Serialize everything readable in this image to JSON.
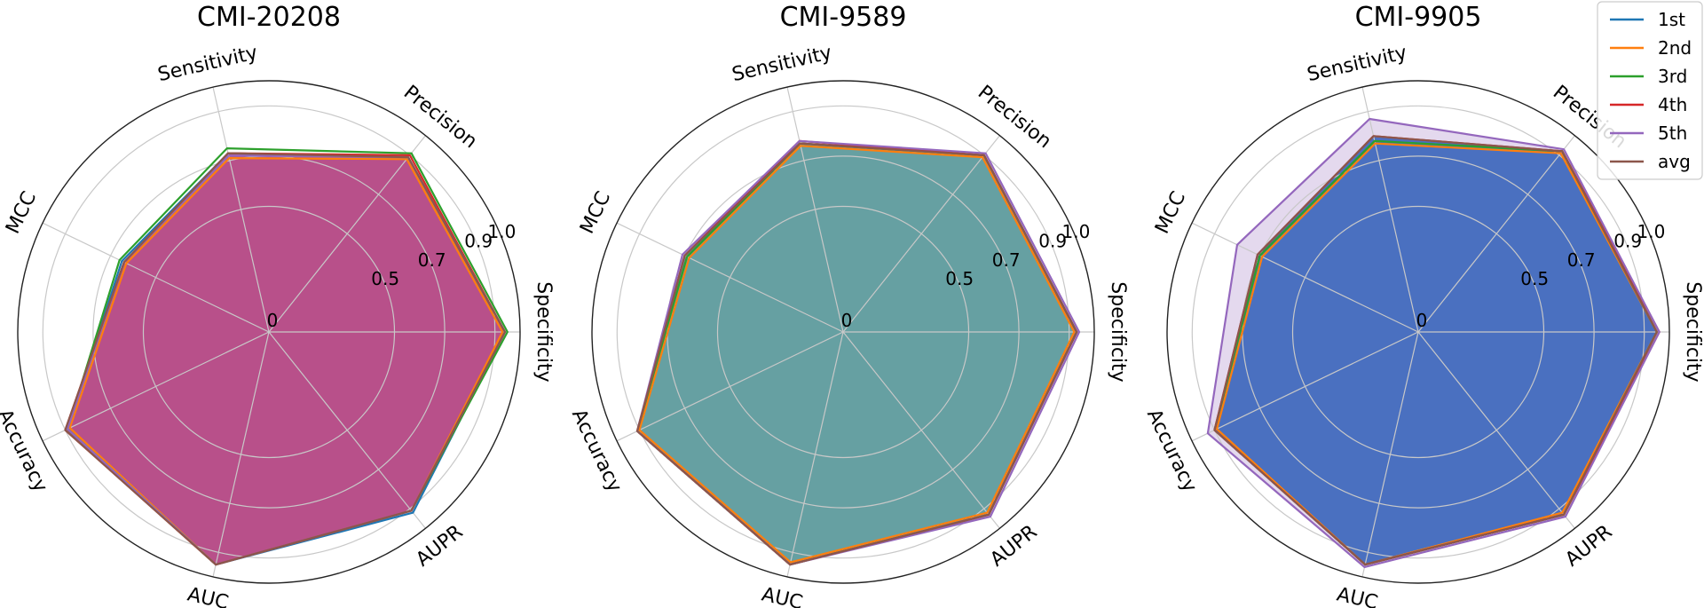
{
  "chart_data": {
    "type": "radar",
    "axes": [
      "Specificity",
      "Precision",
      "Sensitivity",
      "MCC",
      "Accuracy",
      "AUC",
      "AUPR"
    ],
    "ring_ticks": [
      {
        "value": 0,
        "label": "0"
      },
      {
        "value": 0.5,
        "label": "0.5"
      },
      {
        "value": 0.7,
        "label": "0.7"
      },
      {
        "value": 0.9,
        "label": "0.9"
      },
      {
        "value": 1.0,
        "label": "1.0"
      }
    ],
    "radial_range": [
      0,
      1.0
    ],
    "grid": true,
    "legend": {
      "placement": "top-right",
      "entries": [
        {
          "name": "1st",
          "color": "#1f77b4"
        },
        {
          "name": "2nd",
          "color": "#ff7f0e"
        },
        {
          "name": "3rd",
          "color": "#2ca02c"
        },
        {
          "name": "4th",
          "color": "#d62728"
        },
        {
          "name": "5th",
          "color": "#9467bd"
        },
        {
          "name": "avg",
          "color": "#8c564b"
        }
      ]
    },
    "panels": [
      {
        "title": "CMI-20208",
        "fill_color": "#b8508a",
        "series": [
          {
            "name": "1st",
            "values": [
              0.94,
              0.89,
              0.73,
              0.65,
              0.89,
              0.95,
              0.92
            ]
          },
          {
            "name": "2nd",
            "values": [
              0.93,
              0.88,
              0.71,
              0.63,
              0.88,
              0.95,
              0.91
            ]
          },
          {
            "name": "3rd",
            "values": [
              0.95,
              0.91,
              0.75,
              0.66,
              0.89,
              0.95,
              0.91
            ]
          },
          {
            "name": "4th",
            "values": [
              0.94,
              0.9,
              0.73,
              0.64,
              0.9,
              0.95,
              0.91
            ]
          },
          {
            "name": "5th",
            "values": [
              0.94,
              0.89,
              0.72,
              0.64,
              0.89,
              0.95,
              0.91
            ]
          },
          {
            "name": "avg",
            "values": [
              0.94,
              0.89,
              0.73,
              0.64,
              0.9,
              0.95,
              0.91
            ]
          }
        ]
      },
      {
        "title": "CMI-9589",
        "fill_color": "#66a0a2",
        "series": [
          {
            "name": "1st",
            "values": [
              0.93,
              0.9,
              0.77,
              0.7,
              0.91,
              0.95,
              0.93
            ]
          },
          {
            "name": "2nd",
            "values": [
              0.92,
              0.89,
              0.76,
              0.68,
              0.9,
              0.94,
              0.92
            ]
          },
          {
            "name": "3rd",
            "values": [
              0.93,
              0.9,
              0.77,
              0.69,
              0.91,
              0.95,
              0.93
            ]
          },
          {
            "name": "4th",
            "values": [
              0.93,
              0.9,
              0.78,
              0.7,
              0.91,
              0.95,
              0.93
            ]
          },
          {
            "name": "5th",
            "values": [
              0.94,
              0.91,
              0.78,
              0.71,
              0.91,
              0.95,
              0.94
            ]
          },
          {
            "name": "avg",
            "values": [
              0.93,
              0.9,
              0.77,
              0.7,
              0.91,
              0.95,
              0.93
            ]
          }
        ]
      },
      {
        "title": "CMI-9905",
        "fill_color": "#4a70c0",
        "series": [
          {
            "name": "1st",
            "values": [
              0.95,
              0.92,
              0.78,
              0.7,
              0.9,
              0.95,
              0.93
            ]
          },
          {
            "name": "2nd",
            "values": [
              0.95,
              0.91,
              0.77,
              0.69,
              0.89,
              0.95,
              0.92
            ]
          },
          {
            "name": "3rd",
            "values": [
              0.95,
              0.92,
              0.78,
              0.7,
              0.9,
              0.95,
              0.93
            ]
          },
          {
            "name": "4th",
            "values": [
              0.96,
              0.92,
              0.8,
              0.71,
              0.9,
              0.95,
              0.93
            ]
          },
          {
            "name": "5th",
            "values": [
              0.96,
              0.93,
              0.87,
              0.8,
              0.93,
              0.96,
              0.94
            ]
          },
          {
            "name": "avg",
            "values": [
              0.95,
              0.92,
              0.8,
              0.71,
              0.9,
              0.95,
              0.93
            ]
          }
        ]
      }
    ]
  }
}
